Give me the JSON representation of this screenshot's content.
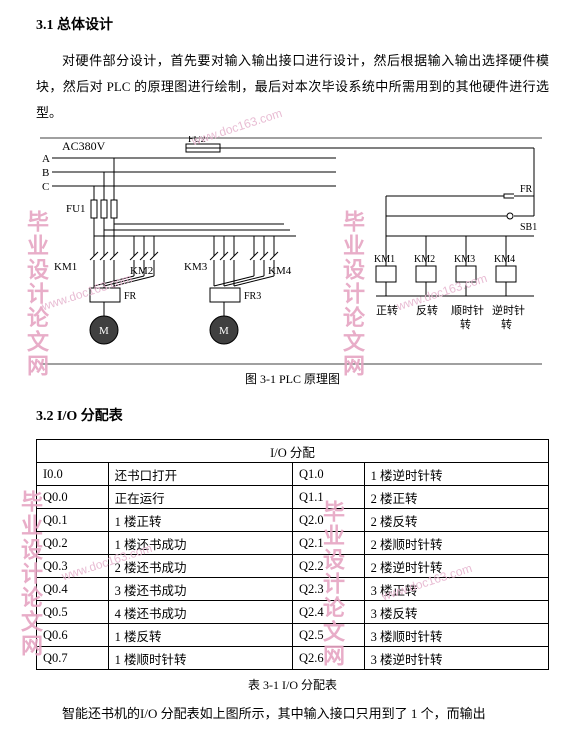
{
  "section1": {
    "title": "3.1  总体设计",
    "para": "对硬件部分设计，首先要对输入输出接口进行设计，然后根据输入输出选择硬件模块，然后对 PLC 的原理图进行绘制，最后对本次毕设系统中所需用到的其他硬件进行选型。"
  },
  "figure": {
    "caption": "图 3-1 PLC 原理图",
    "labels": {
      "ac": "AC380V",
      "a": "A",
      "b": "B",
      "c": "C",
      "fu1": "FU1",
      "fu2": "FU2",
      "km1": "KM1",
      "km2": "KM2",
      "km3": "KM3",
      "km4": "KM4",
      "fr": "FR",
      "fr3": "FR3",
      "sb1": "SB1",
      "m": "M",
      "btn_fwd": "正转",
      "btn_rev": "反转",
      "btn_cw1": "顺时针",
      "btn_cw2": "转",
      "btn_ccw1": "逆时针",
      "btn_ccw2": "转"
    },
    "colors": {
      "line": "#000000",
      "bg": "#ffffff"
    }
  },
  "section2": {
    "title": "3.2 I/O 分配表"
  },
  "table": {
    "header": "I/O 分配",
    "rows": [
      [
        "I0.0",
        "还书口打开",
        "Q1.0",
        "1 楼逆时针转"
      ],
      [
        "Q0.0",
        "正在运行",
        "Q1.1",
        "2 楼正转"
      ],
      [
        "Q0.1",
        "1 楼正转",
        "Q2.0",
        "2 楼反转"
      ],
      [
        "Q0.2",
        "1 楼还书成功",
        "Q2.1",
        "2 楼顺时针转"
      ],
      [
        "Q0.3",
        "2 楼还书成功",
        "Q2.2",
        "2 楼逆时针转"
      ],
      [
        "Q0.4",
        "3 楼还书成功",
        "Q2.3",
        "3 楼正转"
      ],
      [
        "Q0.5",
        "4 楼还书成功",
        "Q2.4",
        "3 楼反转"
      ],
      [
        "Q0.6",
        "1 楼反转",
        "Q2.5",
        "3 楼顺时针转"
      ],
      [
        "Q0.7",
        "1 楼顺时针转",
        "Q2.6",
        "3 楼逆时针转"
      ]
    ],
    "caption": "表 3-1 I/O 分配表",
    "col_widths": [
      "14%",
      "36%",
      "14%",
      "36%"
    ]
  },
  "footer": {
    "para": "智能还书机的I/O 分配表如上图所示，其中输入接口只用到了 1 个，而输出"
  },
  "watermarks": {
    "url": "www.doc163.com",
    "cn": "毕业设计论文网"
  }
}
